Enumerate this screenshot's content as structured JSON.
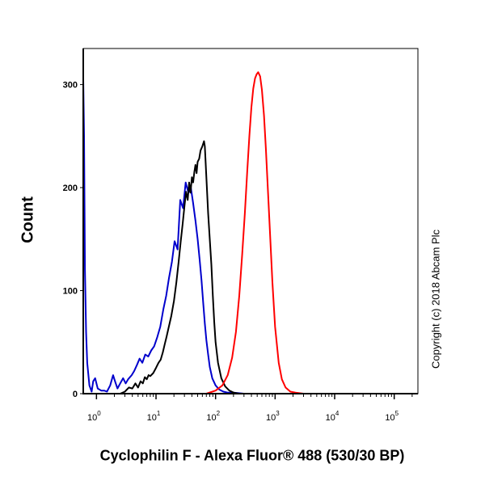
{
  "chart_data": {
    "type": "line",
    "xlabel": "Cyclophilin F - Alexa Fluor® 488 (530/30 BP)",
    "ylabel": "Count",
    "x_scale": "log",
    "xlim": [
      0.6,
      250000
    ],
    "ylim": [
      0,
      335
    ],
    "x_ticks": [
      {
        "value": 1,
        "base": "10",
        "exp": "0"
      },
      {
        "value": 10,
        "base": "10",
        "exp": "1"
      },
      {
        "value": 100,
        "base": "10",
        "exp": "2"
      },
      {
        "value": 1000,
        "base": "10",
        "exp": "3"
      },
      {
        "value": 10000,
        "base": "10",
        "exp": "4"
      },
      {
        "value": 100000,
        "base": "10",
        "exp": "5"
      }
    ],
    "y_ticks": [
      0,
      100,
      200,
      300
    ],
    "legend": "none",
    "grid": false,
    "series": [
      {
        "color": "#0000cc",
        "x": [
          0.6,
          0.62,
          0.64,
          0.67,
          0.7,
          0.76,
          0.83,
          0.88,
          0.95,
          1.05,
          1.2,
          1.35,
          1.5,
          1.7,
          1.9,
          2.05,
          2.25,
          2.5,
          2.8,
          3.1,
          3.4,
          3.9,
          4.3,
          4.8,
          5.3,
          5.9,
          6.6,
          7.4,
          8.3,
          9.3,
          10.5,
          11.8,
          13.3,
          14.8,
          16.5,
          18.5,
          20.5,
          23.0,
          25.5,
          28.5,
          31.5,
          35.0,
          38.5,
          42.0,
          46.0,
          50.0,
          54.0,
          58.0,
          62.0,
          66.0,
          70.0,
          75.0,
          80.0,
          88.0,
          100.0,
          115.0,
          135.0,
          160.0,
          200.0,
          300.0,
          500.0,
          1000.0,
          10000.0,
          250000.0
        ],
        "y": [
          305,
          250,
          120,
          60,
          30,
          8,
          2,
          12,
          15,
          5,
          3,
          3,
          2,
          8,
          18,
          12,
          5,
          10,
          15,
          10,
          14,
          18,
          22,
          28,
          34,
          30,
          38,
          36,
          42,
          46,
          55,
          65,
          82,
          95,
          112,
          128,
          148,
          140,
          188,
          180,
          205,
          195,
          200,
          185,
          168,
          150,
          130,
          110,
          88,
          68,
          52,
          38,
          26,
          15,
          8,
          4,
          2,
          1,
          1,
          0,
          0,
          0,
          0,
          0
        ]
      },
      {
        "color": "#000000",
        "x": [
          2.5,
          3.0,
          3.5,
          4.0,
          4.5,
          5.0,
          5.5,
          6.0,
          6.5,
          7.0,
          7.5,
          8.0,
          9.0,
          10.0,
          11.0,
          12.0,
          13.0,
          14.0,
          15.0,
          16.0,
          18.0,
          20.0,
          22.0,
          24.0,
          26.0,
          28.0,
          30.0,
          32.0,
          34.0,
          36.0,
          38.0,
          40.0,
          42.0,
          44.0,
          46.0,
          48.0,
          50.0,
          53.0,
          56.0,
          60.0,
          64.0,
          66.0,
          70.0,
          75.0,
          80.0,
          85.0,
          90.0,
          95.0,
          100.0,
          110.0,
          125.0,
          145.0,
          170.0,
          200.0,
          250.0,
          300.0,
          400.0,
          600.0,
          1000.0,
          10000.0,
          250000.0
        ],
        "y": [
          0,
          2,
          6,
          5,
          10,
          6,
          12,
          10,
          16,
          14,
          18,
          17,
          20,
          25,
          30,
          33,
          40,
          48,
          55,
          62,
          75,
          90,
          108,
          128,
          148,
          165,
          182,
          196,
          188,
          205,
          195,
          210,
          205,
          215,
          222,
          214,
          225,
          228,
          236,
          240,
          245,
          240,
          210,
          175,
          150,
          125,
          95,
          70,
          50,
          30,
          15,
          7,
          3,
          1,
          0,
          0,
          0,
          0,
          0,
          0,
          0
        ]
      },
      {
        "color": "#ff0000",
        "x": [
          0.6,
          70.0,
          100.0,
          130.0,
          160.0,
          190.0,
          220.0,
          250.0,
          280.0,
          310.0,
          340.0,
          370.0,
          400.0,
          430.0,
          460.0,
          490.0,
          520.0,
          560.0,
          600.0,
          650.0,
          700.0,
          760.0,
          830.0,
          900.0,
          1000.0,
          1150.0,
          1300.0,
          1500.0,
          1800.0,
          2200.0,
          3000.0,
          5000.0,
          250000.0
        ],
        "y": [
          0,
          0,
          3,
          8,
          18,
          35,
          60,
          95,
          135,
          175,
          215,
          250,
          278,
          296,
          306,
          310,
          312,
          308,
          295,
          270,
          238,
          195,
          150,
          108,
          65,
          30,
          14,
          6,
          2,
          1,
          0,
          0,
          0
        ]
      }
    ]
  },
  "copyright": "Copyright (c) 2018 Abcam Plc"
}
